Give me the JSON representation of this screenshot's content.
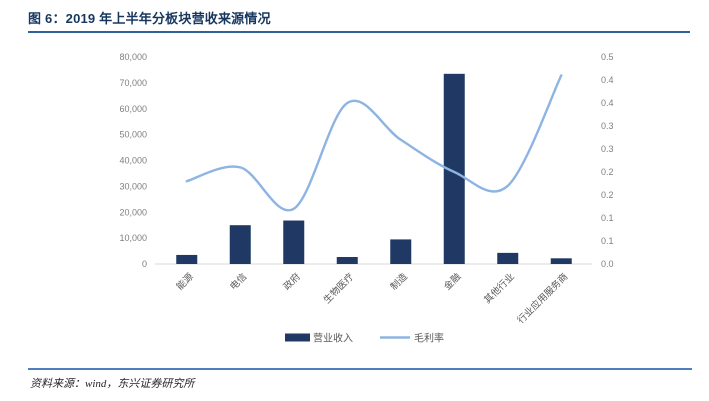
{
  "page": {
    "title": "图 6：2019 年上半年分板块营收来源情况",
    "source_note": "资料来源：wind，东兴证券研究所"
  },
  "chart_data": {
    "type": "bar+line combo",
    "categories": [
      "能源",
      "电信",
      "政府",
      "生物医疗",
      "制造",
      "金融",
      "其他行业",
      "行业应用服务商"
    ],
    "series": [
      {
        "name": "营业收入",
        "type": "bar",
        "axis": "left",
        "color": "#1F3864",
        "values": [
          3500,
          15000,
          16800,
          2700,
          9500,
          73500,
          4300,
          2200
        ]
      },
      {
        "name": "毛利率",
        "type": "line",
        "axis": "right",
        "color": "#8DB4E2",
        "values": [
          0.18,
          0.21,
          0.12,
          0.35,
          0.27,
          0.2,
          0.17,
          0.41
        ]
      }
    ],
    "left_axis": {
      "min": 0,
      "max": 80000,
      "tick_labels": [
        "0",
        "10,000",
        "20,000",
        "30,000",
        "40,000",
        "50,000",
        "60,000",
        "70,000",
        "80,000"
      ]
    },
    "right_axis": {
      "min": 0,
      "max": 0.45,
      "tick_labels": [
        "0.0",
        "0.1",
        "0.1",
        "0.2",
        "0.2",
        "0.3",
        "0.3",
        "0.4",
        "0.4",
        "0.5"
      ]
    },
    "legend": {
      "items": [
        "营业收入",
        "毛利率"
      ],
      "position": "bottom"
    },
    "grid": "off",
    "styles": {
      "axis_line_color": "#D9D9D9",
      "tick_label_color": "#7F7F7F",
      "category_label_color": "#595959",
      "legend_text_color": "#595959"
    }
  }
}
